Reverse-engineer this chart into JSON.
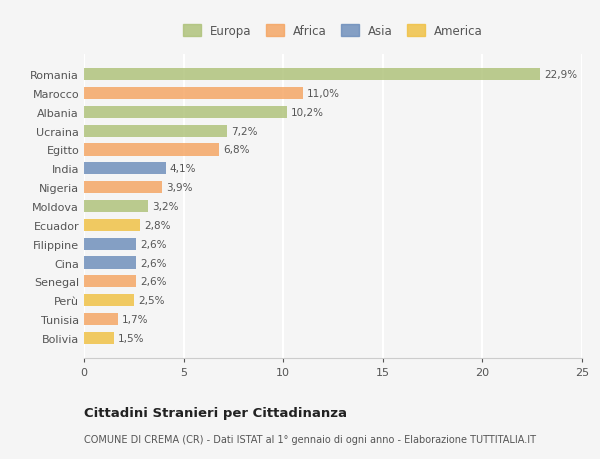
{
  "categories": [
    "Romania",
    "Marocco",
    "Albania",
    "Ucraina",
    "Egitto",
    "India",
    "Nigeria",
    "Moldova",
    "Ecuador",
    "Filippine",
    "Cina",
    "Senegal",
    "Perù",
    "Tunisia",
    "Bolivia"
  ],
  "values": [
    22.9,
    11.0,
    10.2,
    7.2,
    6.8,
    4.1,
    3.9,
    3.2,
    2.8,
    2.6,
    2.6,
    2.6,
    2.5,
    1.7,
    1.5
  ],
  "labels": [
    "22,9%",
    "11,0%",
    "10,2%",
    "7,2%",
    "6,8%",
    "4,1%",
    "3,9%",
    "3,2%",
    "2,8%",
    "2,6%",
    "2,6%",
    "2,6%",
    "2,5%",
    "1,7%",
    "1,5%"
  ],
  "colors": [
    "#adc178",
    "#f4a460",
    "#adc178",
    "#adc178",
    "#f4a460",
    "#6b8cba",
    "#f4a460",
    "#adc178",
    "#f0c040",
    "#6b8cba",
    "#6b8cba",
    "#f4a460",
    "#f0c040",
    "#f4a460",
    "#f0c040"
  ],
  "legend_labels": [
    "Europa",
    "Africa",
    "Asia",
    "America"
  ],
  "legend_colors": [
    "#adc178",
    "#f4a460",
    "#6b8cba",
    "#f0c040"
  ],
  "title": "Cittadini Stranieri per Cittadinanza",
  "subtitle": "COMUNE DI CREMA (CR) - Dati ISTAT al 1° gennaio di ogni anno - Elaborazione TUTTITALIA.IT",
  "xlim": [
    0,
    25
  ],
  "xticks": [
    0,
    5,
    10,
    15,
    20,
    25
  ],
  "bg_color": "#f5f5f5",
  "bar_alpha": 0.82
}
